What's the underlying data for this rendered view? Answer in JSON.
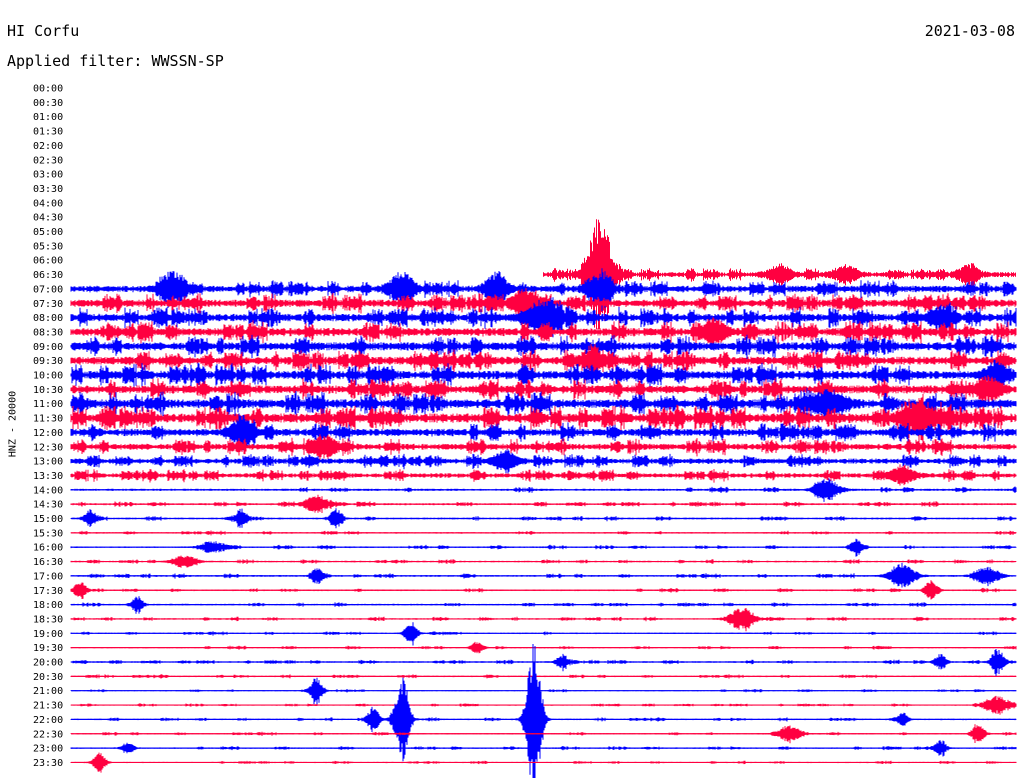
{
  "header": {
    "station": "HI Corfu",
    "filter": "Applied filter: WWSSN-SP",
    "date": "2021-03-08",
    "ylabel": "HNZ - 20000"
  },
  "colors": {
    "blue": "#0000ff",
    "red": "#ff0040"
  },
  "chart_data": {
    "type": "line",
    "title": "HI Corfu",
    "subtitle": "Applied filter: WWSSN-SP",
    "date": "2021-03-08",
    "ylabel": "HNZ - 20000",
    "xlabel": "",
    "row_labels": [
      "00:00",
      "00:30",
      "01:00",
      "01:30",
      "02:00",
      "02:30",
      "03:00",
      "03:30",
      "04:00",
      "04:30",
      "05:00",
      "05:30",
      "06:00",
      "06:30",
      "07:00",
      "07:30",
      "08:00",
      "08:30",
      "09:00",
      "09:30",
      "10:00",
      "10:30",
      "11:00",
      "11:30",
      "12:00",
      "12:30",
      "13:00",
      "13:30",
      "14:00",
      "14:30",
      "15:00",
      "15:30",
      "16:00",
      "16:30",
      "17:00",
      "17:30",
      "18:00",
      "18:30",
      "19:00",
      "19:30",
      "20:00",
      "20:30",
      "21:00",
      "21:30",
      "22:00",
      "22:30",
      "23:00",
      "23:30"
    ],
    "row_minutes": 30,
    "trace_start": "06:30",
    "trace_start_fraction": 0.5,
    "trace_color_order": [
      "blue",
      "red"
    ],
    "noise_level": [
      0,
      0,
      0,
      0,
      0,
      0,
      0,
      0,
      0,
      0,
      0,
      0,
      0,
      2.4,
      3.2,
      3.6,
      3.8,
      4.0,
      4.0,
      4.0,
      4.2,
      4.0,
      4.4,
      4.6,
      3.6,
      3.0,
      2.6,
      2.2,
      1.1,
      1.0,
      0.9,
      0.8,
      0.8,
      0.8,
      0.9,
      0.8,
      0.8,
      0.8,
      0.7,
      0.7,
      0.8,
      0.7,
      0.6,
      0.6,
      0.7,
      0.7,
      0.7,
      0.6
    ],
    "events": [
      {
        "row": "06:30",
        "pos": 0.56,
        "amp": 55,
        "dur": 0.02
      },
      {
        "row": "06:30",
        "pos": 0.75,
        "amp": 10,
        "dur": 0.02
      },
      {
        "row": "06:30",
        "pos": 0.82,
        "amp": 9,
        "dur": 0.02
      },
      {
        "row": "06:30",
        "pos": 0.95,
        "amp": 8,
        "dur": 0.02
      },
      {
        "row": "07:00",
        "pos": 0.11,
        "amp": 16,
        "dur": 0.02
      },
      {
        "row": "07:00",
        "pos": 0.35,
        "amp": 16,
        "dur": 0.02
      },
      {
        "row": "07:00",
        "pos": 0.45,
        "amp": 12,
        "dur": 0.02
      },
      {
        "row": "07:00",
        "pos": 0.56,
        "amp": 14,
        "dur": 0.02
      },
      {
        "row": "07:30",
        "pos": 0.48,
        "amp": 14,
        "dur": 0.02
      },
      {
        "row": "08:00",
        "pos": 0.5,
        "amp": 16,
        "dur": 0.03
      },
      {
        "row": "08:00",
        "pos": 0.92,
        "amp": 10,
        "dur": 0.02
      },
      {
        "row": "08:30",
        "pos": 0.68,
        "amp": 12,
        "dur": 0.02
      },
      {
        "row": "09:30",
        "pos": 0.55,
        "amp": 10,
        "dur": 0.02
      },
      {
        "row": "10:00",
        "pos": 0.98,
        "amp": 12,
        "dur": 0.02
      },
      {
        "row": "10:30",
        "pos": 0.97,
        "amp": 12,
        "dur": 0.02
      },
      {
        "row": "11:00",
        "pos": 0.8,
        "amp": 12,
        "dur": 0.03
      },
      {
        "row": "11:30",
        "pos": 0.9,
        "amp": 14,
        "dur": 0.03
      },
      {
        "row": "12:00",
        "pos": 0.18,
        "amp": 12,
        "dur": 0.02
      },
      {
        "row": "12:30",
        "pos": 0.27,
        "amp": 10,
        "dur": 0.02
      },
      {
        "row": "13:00",
        "pos": 0.46,
        "amp": 10,
        "dur": 0.02
      },
      {
        "row": "13:30",
        "pos": 0.88,
        "amp": 10,
        "dur": 0.02
      },
      {
        "row": "14:00",
        "pos": 0.8,
        "amp": 10,
        "dur": 0.02
      },
      {
        "row": "14:30",
        "pos": 0.26,
        "amp": 9,
        "dur": 0.02
      },
      {
        "row": "15:00",
        "pos": 0.02,
        "amp": 8,
        "dur": 0.01
      },
      {
        "row": "15:00",
        "pos": 0.18,
        "amp": 10,
        "dur": 0.01
      },
      {
        "row": "15:00",
        "pos": 0.28,
        "amp": 9,
        "dur": 0.01
      },
      {
        "row": "16:00",
        "pos": 0.15,
        "amp": 6,
        "dur": 0.02
      },
      {
        "row": "16:00",
        "pos": 0.83,
        "amp": 8,
        "dur": 0.01
      },
      {
        "row": "16:30",
        "pos": 0.12,
        "amp": 6,
        "dur": 0.02
      },
      {
        "row": "17:00",
        "pos": 0.26,
        "amp": 8,
        "dur": 0.01
      },
      {
        "row": "17:00",
        "pos": 0.88,
        "amp": 14,
        "dur": 0.02
      },
      {
        "row": "17:00",
        "pos": 0.97,
        "amp": 9,
        "dur": 0.02
      },
      {
        "row": "17:30",
        "pos": 0.01,
        "amp": 9,
        "dur": 0.01
      },
      {
        "row": "17:30",
        "pos": 0.91,
        "amp": 10,
        "dur": 0.01
      },
      {
        "row": "18:00",
        "pos": 0.07,
        "amp": 7,
        "dur": 0.01
      },
      {
        "row": "18:30",
        "pos": 0.71,
        "amp": 12,
        "dur": 0.02
      },
      {
        "row": "19:00",
        "pos": 0.36,
        "amp": 12,
        "dur": 0.01
      },
      {
        "row": "19:30",
        "pos": 0.43,
        "amp": 6,
        "dur": 0.01
      },
      {
        "row": "20:00",
        "pos": 0.52,
        "amp": 8,
        "dur": 0.01
      },
      {
        "row": "20:00",
        "pos": 0.92,
        "amp": 8,
        "dur": 0.01
      },
      {
        "row": "20:00",
        "pos": 0.98,
        "amp": 14,
        "dur": 0.01
      },
      {
        "row": "21:00",
        "pos": 0.26,
        "amp": 14,
        "dur": 0.01
      },
      {
        "row": "21:30",
        "pos": 0.98,
        "amp": 9,
        "dur": 0.02
      },
      {
        "row": "22:00",
        "pos": 0.32,
        "amp": 12,
        "dur": 0.01
      },
      {
        "row": "22:00",
        "pos": 0.35,
        "amp": 45,
        "dur": 0.012
      },
      {
        "row": "22:00",
        "pos": 0.49,
        "amp": 80,
        "dur": 0.012
      },
      {
        "row": "22:00",
        "pos": 0.88,
        "amp": 6,
        "dur": 0.01
      },
      {
        "row": "22:30",
        "pos": 0.76,
        "amp": 8,
        "dur": 0.02
      },
      {
        "row": "22:30",
        "pos": 0.96,
        "amp": 12,
        "dur": 0.01
      },
      {
        "row": "23:00",
        "pos": 0.06,
        "amp": 6,
        "dur": 0.01
      },
      {
        "row": "23:00",
        "pos": 0.92,
        "amp": 8,
        "dur": 0.01
      },
      {
        "row": "23:30",
        "pos": 0.03,
        "amp": 10,
        "dur": 0.01
      }
    ]
  }
}
